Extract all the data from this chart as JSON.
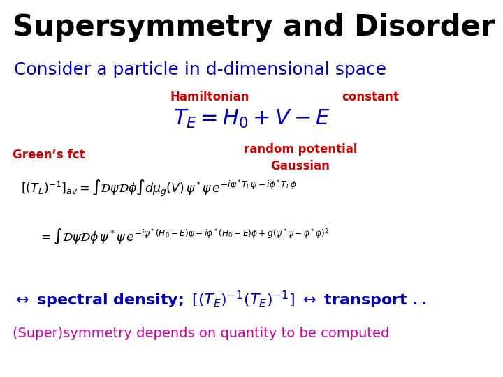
{
  "title": "Supersymmetry and Disorder",
  "subtitle": "Consider a particle in d-dimensional space",
  "label_hamiltonian": "Hamiltonian",
  "label_constant": "constant",
  "label_greens": "Green’s fct",
  "color_title": "#000000",
  "color_subtitle": "#0000bb",
  "color_red": "#cc0000",
  "color_eq": "#0000bb",
  "color_bottom1": "#0000bb",
  "color_bottom2": "#cc00aa",
  "bg_color": "#ffffff"
}
